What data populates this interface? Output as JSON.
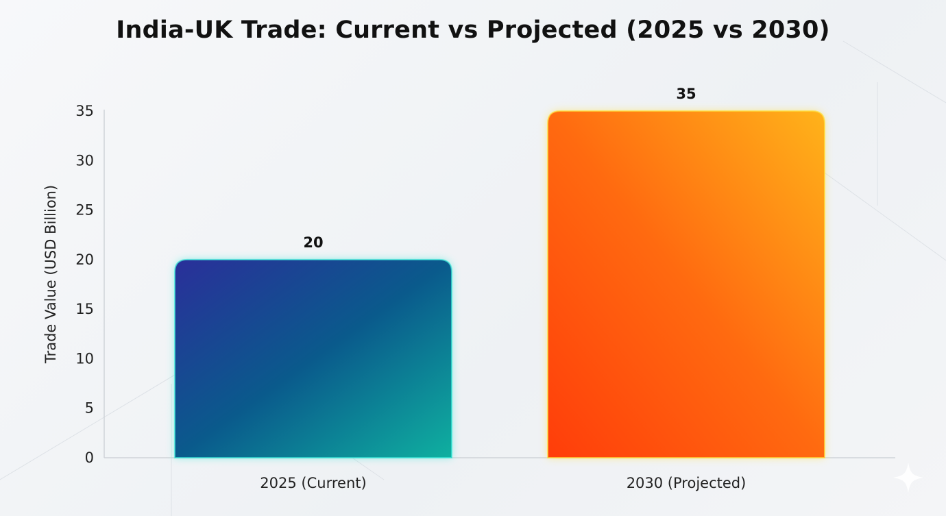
{
  "chart_data": {
    "type": "bar",
    "title": "India-UK Trade: Current vs Projected (2025 vs 2030)",
    "xlabel": "",
    "ylabel": "Trade Value (USD Billion)",
    "categories": [
      "2025 (Current)",
      "2030 (Projected)"
    ],
    "values": [
      20,
      35
    ],
    "data_labels": [
      "20",
      "35"
    ],
    "ylim": [
      0,
      35
    ],
    "yticks": [
      0,
      5,
      10,
      15,
      20,
      25,
      30,
      35
    ],
    "grid": false,
    "colors": [
      {
        "from": "#2a2f9a",
        "mid": "#0a5a8c",
        "to": "#0fb0a0",
        "glow": "#3ee8d8"
      },
      {
        "from": "#ff3d0a",
        "mid": "#ff6a10",
        "to": "#ffb31a",
        "glow": "#ffe040"
      }
    ]
  }
}
